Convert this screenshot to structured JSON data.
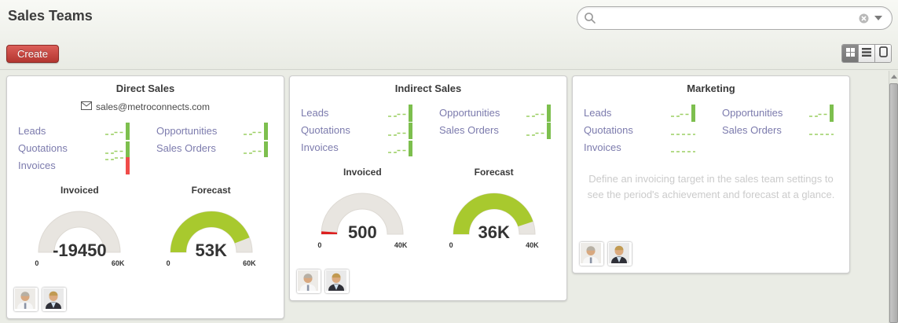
{
  "header": {
    "title": "Sales Teams",
    "search": {
      "value": "",
      "placeholder": ""
    }
  },
  "toolbar": {
    "create_label": "Create",
    "views": [
      "kanban",
      "list",
      "form"
    ]
  },
  "icons": {
    "search": "magnifier",
    "clear_search": "circle-x",
    "search_options": "caret-down",
    "email": "envelope",
    "view_kanban": "grid-2x2",
    "view_list": "horizontal-lines",
    "view_form": "rounded-rectangle",
    "scroll_up": "triangle-up"
  },
  "colors": {
    "accent_red": "#b33630",
    "link_purple": "#7c7bad",
    "spark_green": "#7dbf4e",
    "spark_red": "#f04b49",
    "gauge_green": "#a8c92e",
    "gauge_red": "#dc1f1f",
    "gauge_gray": "#e8e5e0"
  },
  "cards": [
    {
      "title": "Direct Sales",
      "email": "sales@metroconnects.com",
      "links": [
        {
          "label": "Leads",
          "spark": "bar",
          "spark_color": "#7dbf4e"
        },
        {
          "label": "Opportunities",
          "spark": "bar",
          "spark_color": "#7dbf4e"
        },
        {
          "label": "Quotations",
          "spark": "bar",
          "spark_color": "#7dbf4e"
        },
        {
          "label": "Sales Orders",
          "spark": "bar",
          "spark_color": "#7dbf4e"
        },
        {
          "label": "Invoices",
          "spark": "bar",
          "spark_color": "#f04b49"
        }
      ],
      "gauges": [
        {
          "title": "Invoiced",
          "value": "-19450",
          "min": "0",
          "max": "60K",
          "fraction": 0,
          "color": "#a8c92e"
        },
        {
          "title": "Forecast",
          "value": "53K",
          "min": "0",
          "max": "60K",
          "fraction": 0.883,
          "color": "#a8c92e"
        }
      ],
      "member_count": 2
    },
    {
      "title": "Indirect Sales",
      "links": [
        {
          "label": "Leads",
          "spark": "bar",
          "spark_color": "#7dbf4e"
        },
        {
          "label": "Opportunities",
          "spark": "bar",
          "spark_color": "#7dbf4e"
        },
        {
          "label": "Quotations",
          "spark": "bar",
          "spark_color": "#7dbf4e"
        },
        {
          "label": "Sales Orders",
          "spark": "bar",
          "spark_color": "#7dbf4e"
        },
        {
          "label": "Invoices",
          "spark": "bar",
          "spark_color": "#7dbf4e"
        }
      ],
      "gauges": [
        {
          "title": "Invoiced",
          "value": "500",
          "min": "0",
          "max": "40K",
          "fraction": 0.0125,
          "color": "#dc1f1f"
        },
        {
          "title": "Forecast",
          "value": "36K",
          "min": "0",
          "max": "40K",
          "fraction": 0.9,
          "color": "#a8c92e"
        }
      ],
      "member_count": 2
    },
    {
      "title": "Marketing",
      "links": [
        {
          "label": "Leads",
          "spark": "bar",
          "spark_color": "#7dbf4e"
        },
        {
          "label": "Opportunities",
          "spark": "bar",
          "spark_color": "#7dbf4e"
        },
        {
          "label": "Quotations",
          "spark": "flat"
        },
        {
          "label": "Sales Orders",
          "spark": "flat"
        },
        {
          "label": "Invoices",
          "spark": "flat"
        }
      ],
      "message": "Define an invoicing target in the sales team settings to see the period's achievement and forecast at a glance.",
      "member_count": 2
    }
  ]
}
